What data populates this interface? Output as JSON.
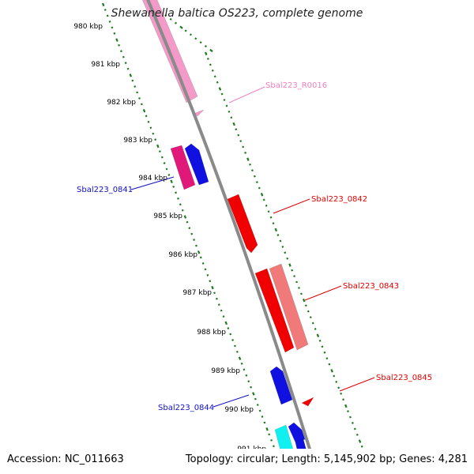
{
  "title": "Shewanella baltica OS223, complete genome",
  "footer": {
    "accession": "Accession: NC_011663",
    "summary": "Topology: circular; Length: 5,145,902 bp; Genes: 4,281"
  },
  "kbp_labels": [
    "980 kbp",
    "981 kbp",
    "982 kbp",
    "983 kbp",
    "984 kbp",
    "985 kbp",
    "986 kbp",
    "987 kbp",
    "988 kbp",
    "989 kbp",
    "990 kbp",
    "991 kbp"
  ],
  "gene_labels": {
    "r0016": "Sbal223_R0016",
    "g0841": "Sbal223_0841",
    "g0842": "Sbal223_0842",
    "g0843": "Sbal223_0843",
    "g0844": "Sbal223_0844",
    "g0845": "Sbal223_0845"
  },
  "colors": {
    "backbone": "#8a8a8a",
    "tick": "#1e7a1e",
    "pink": "#f39ac8",
    "magenta": "#e0187a",
    "blue": "#1010e0",
    "red": "#f00000",
    "salmon": "#f07a7a",
    "cyan": "#10f0f0",
    "label_pink": "#f080c0",
    "label_red": "#e00000",
    "label_blue": "#1010c0"
  }
}
